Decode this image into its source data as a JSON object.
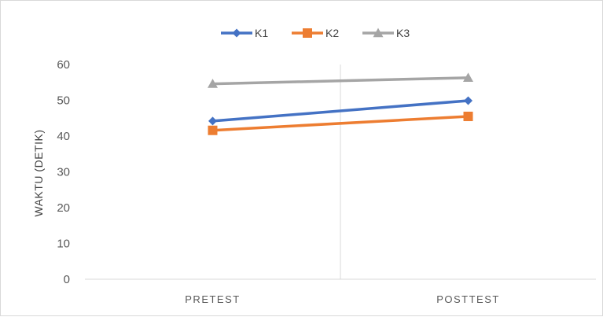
{
  "chart_data": {
    "type": "line",
    "title": "",
    "xlabel": "",
    "ylabel": "WAKTU (DETIK)",
    "categories": [
      "PRETEST",
      "POSTTEST"
    ],
    "ylim": [
      0,
      60
    ],
    "yticks": [
      0,
      10,
      20,
      30,
      40,
      50,
      60
    ],
    "grid": false,
    "legend_position": "top",
    "series": [
      {
        "name": "K1",
        "values": [
          44.2,
          49.9
        ],
        "color": "#4472C4",
        "marker": "diamond"
      },
      {
        "name": "K2",
        "values": [
          41.6,
          45.5
        ],
        "color": "#ED7D31",
        "marker": "square"
      },
      {
        "name": "K3",
        "values": [
          54.6,
          56.3
        ],
        "color": "#A5A5A5",
        "marker": "triangle"
      }
    ]
  }
}
